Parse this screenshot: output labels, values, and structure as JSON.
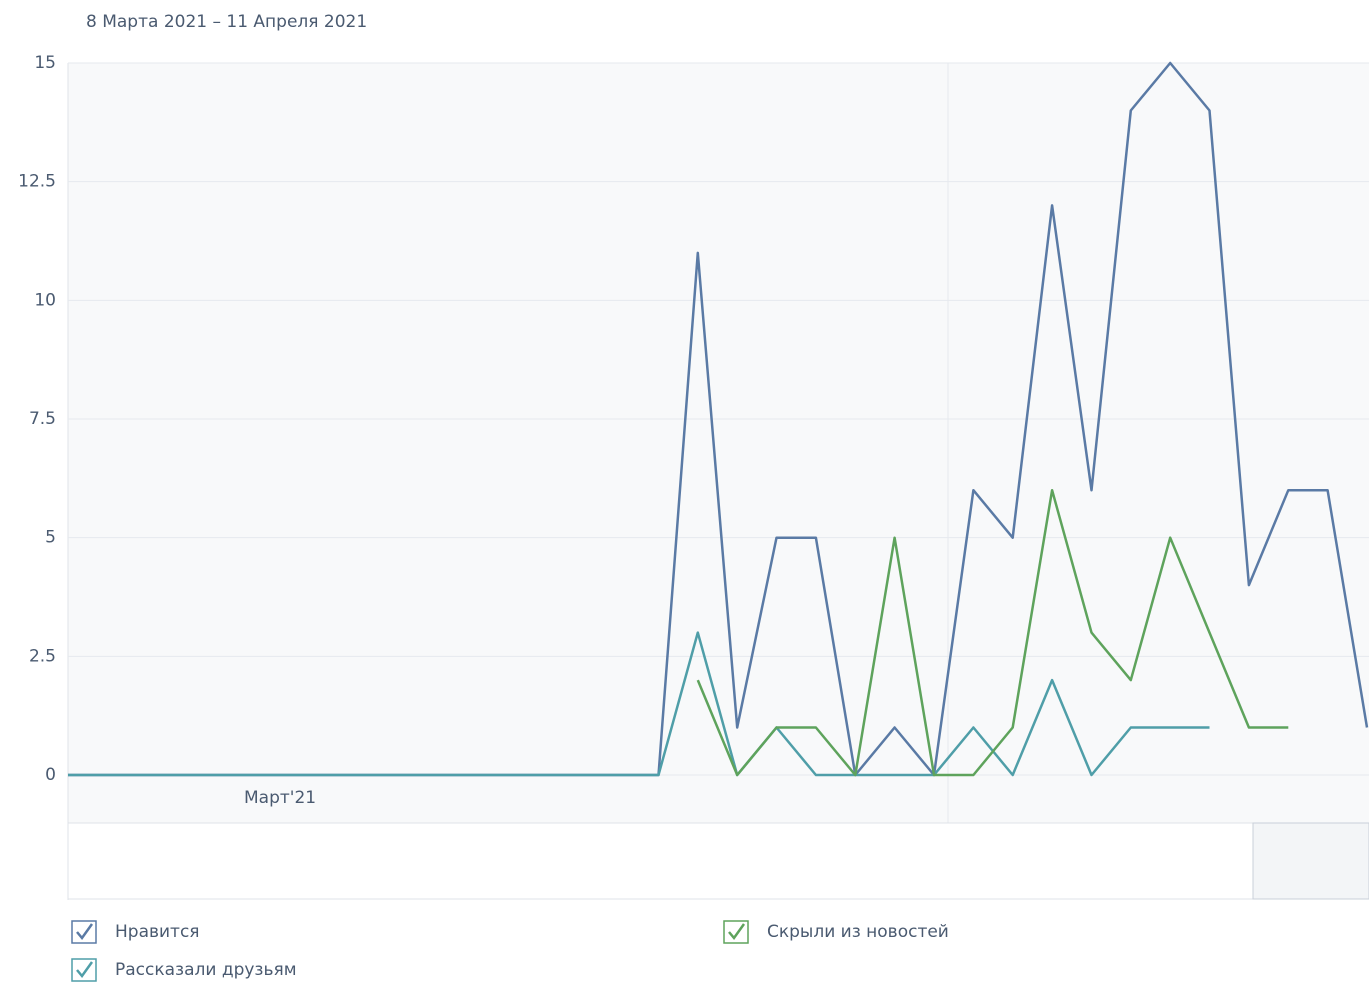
{
  "chart_data": {
    "type": "line",
    "subtitle": "8 Марта 2021 – 11 Апреля 2021",
    "x_annotation": "Март'21",
    "categories": [
      null,
      null,
      null,
      null,
      null,
      null,
      null,
      null,
      null,
      null,
      null,
      null,
      null,
      null,
      null,
      null,
      null,
      null,
      null,
      null,
      null,
      null,
      null,
      null,
      null,
      null,
      null,
      null,
      null,
      null,
      null,
      null,
      null,
      null
    ],
    "series": [
      {
        "name": "Нравится",
        "color": "#5a7aa5",
        "values": [
          0,
          0,
          0,
          0,
          0,
          0,
          0,
          0,
          0,
          0,
          0,
          0,
          0,
          0,
          0,
          0,
          11,
          1,
          5,
          5,
          0,
          1,
          0,
          6,
          5,
          12,
          6,
          14,
          15,
          14,
          4,
          6,
          6,
          1
        ]
      },
      {
        "name": "Рассказали друзьям",
        "color": "#4f9ea8",
        "values": [
          0,
          0,
          0,
          0,
          0,
          0,
          0,
          0,
          0,
          0,
          0,
          0,
          0,
          0,
          0,
          0,
          3,
          0,
          1,
          0,
          0,
          0,
          0,
          1,
          0,
          2,
          0,
          1,
          1,
          1,
          null,
          null,
          null,
          null
        ]
      },
      {
        "name": "Скрыли из новостей",
        "color": "#5ea35c",
        "values": [
          null,
          null,
          null,
          null,
          null,
          null,
          null,
          null,
          null,
          null,
          null,
          null,
          null,
          null,
          null,
          null,
          2,
          0,
          1,
          1,
          0,
          5,
          0,
          0,
          1,
          6,
          3,
          2,
          5,
          3,
          1,
          1,
          null,
          null
        ]
      }
    ],
    "ylim": [
      0,
      15
    ],
    "yticks": [
      0,
      2.5,
      5,
      7.5,
      10,
      12.5,
      15
    ],
    "grid": true
  }
}
